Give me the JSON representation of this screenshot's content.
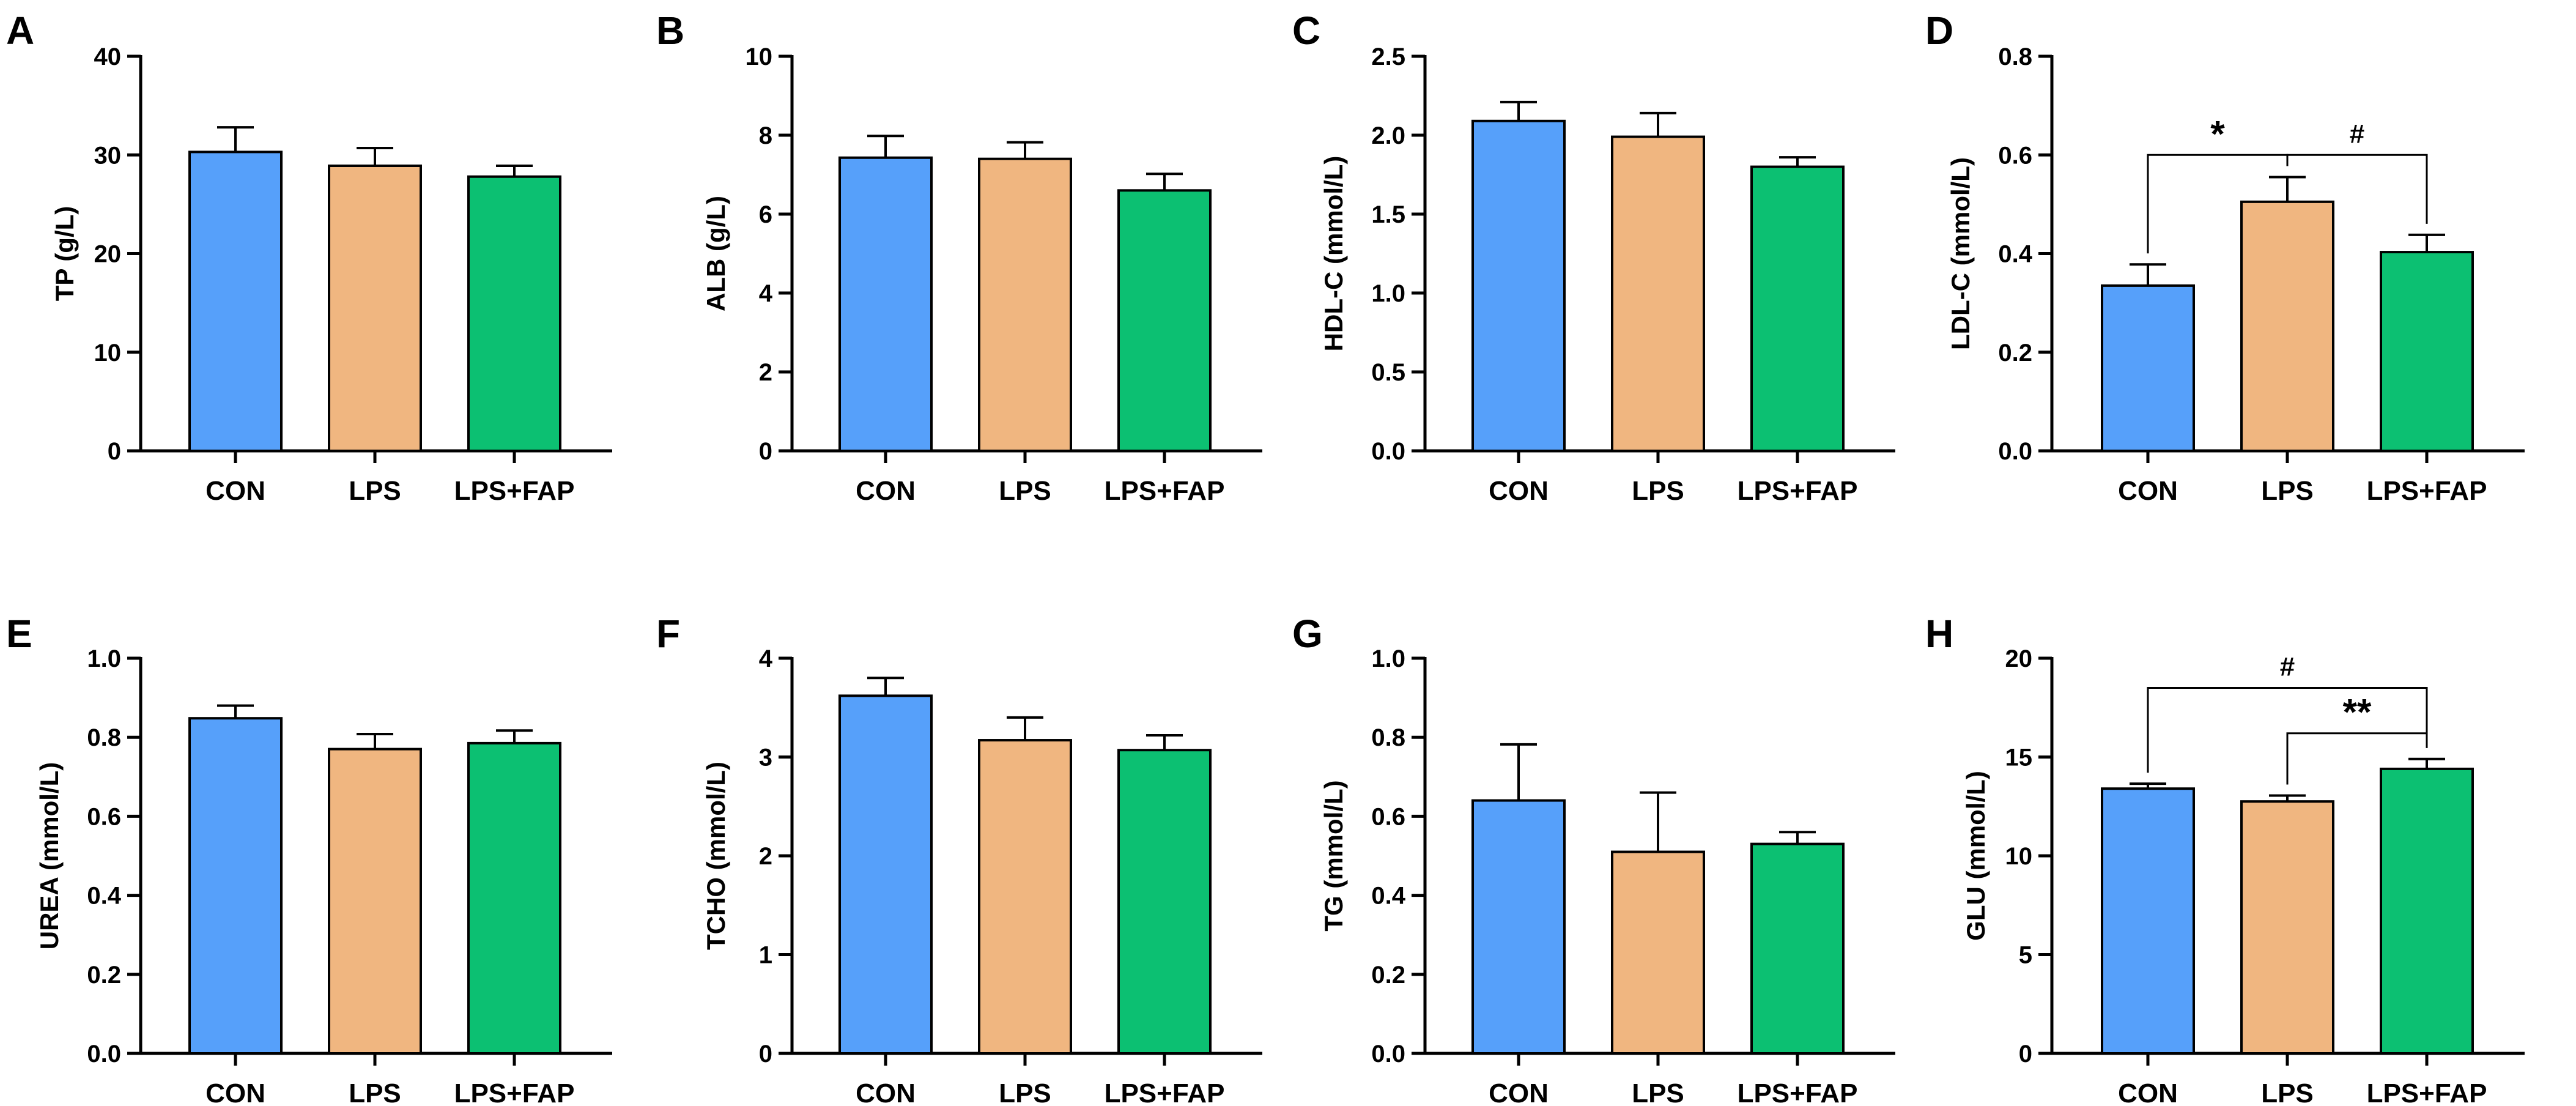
{
  "figure": {
    "group_labels": [
      "CON",
      "LPS",
      "LPS+FAP"
    ],
    "group_colors": [
      "#56A0FA",
      "#F0B680",
      "#0CC072"
    ]
  },
  "chart_data": [
    {
      "panel": "A",
      "type": "bar",
      "ylabel": "TP (g/L)",
      "ylim": [
        0,
        40
      ],
      "yticks": [
        0,
        10,
        20,
        30,
        40
      ],
      "tick_labels": [
        "0",
        "10",
        "20",
        "30",
        "40"
      ],
      "categories": [
        "CON",
        "LPS",
        "LPS+FAP"
      ],
      "values": [
        30.3,
        28.9,
        27.8
      ],
      "errors": [
        2.5,
        1.8,
        1.1
      ],
      "annotations": []
    },
    {
      "panel": "B",
      "type": "bar",
      "ylabel": "ALB (g/L)",
      "ylim": [
        0,
        10
      ],
      "yticks": [
        0,
        2,
        4,
        6,
        8,
        10
      ],
      "tick_labels": [
        "0",
        "2",
        "4",
        "6",
        "8",
        "10"
      ],
      "categories": [
        "CON",
        "LPS",
        "LPS+FAP"
      ],
      "values": [
        7.43,
        7.4,
        6.6
      ],
      "errors": [
        0.55,
        0.42,
        0.42
      ],
      "annotations": []
    },
    {
      "panel": "C",
      "type": "bar",
      "ylabel": "HDL-C (mmol/L)",
      "ylim": [
        0,
        2.5
      ],
      "yticks": [
        0,
        0.5,
        1,
        1.5,
        2,
        2.5
      ],
      "tick_labels": [
        "0.0",
        "0.5",
        "1.0",
        "1.5",
        "2.0",
        "2.5"
      ],
      "categories": [
        "CON",
        "LPS",
        "LPS+FAP"
      ],
      "values": [
        2.09,
        1.99,
        1.8
      ],
      "errors": [
        0.12,
        0.15,
        0.06
      ],
      "annotations": []
    },
    {
      "panel": "D",
      "type": "bar",
      "ylabel": "LDL-C (mmol/L)",
      "ylim": [
        0,
        0.8
      ],
      "yticks": [
        0,
        0.2,
        0.4,
        0.6,
        0.8
      ],
      "tick_labels": [
        "0.0",
        "0.2",
        "0.4",
        "0.6",
        "0.8"
      ],
      "categories": [
        "CON",
        "LPS",
        "LPS+FAP"
      ],
      "values": [
        0.335,
        0.505,
        0.403
      ],
      "errors": [
        0.043,
        0.05,
        0.035
      ],
      "annotations": [
        {
          "from": 0,
          "to": 1,
          "y": 0.6,
          "label": "*"
        },
        {
          "from": 1,
          "to": 2,
          "y": 0.6,
          "label": "#"
        }
      ]
    },
    {
      "panel": "E",
      "type": "bar",
      "ylabel": "UREA (mmol/L)",
      "ylim": [
        0,
        1
      ],
      "yticks": [
        0,
        0.2,
        0.4,
        0.6,
        0.8,
        1
      ],
      "tick_labels": [
        "0.0",
        "0.2",
        "0.4",
        "0.6",
        "0.8",
        "1.0"
      ],
      "categories": [
        "CON",
        "LPS",
        "LPS+FAP"
      ],
      "values": [
        0.848,
        0.77,
        0.785
      ],
      "errors": [
        0.032,
        0.038,
        0.032
      ],
      "annotations": []
    },
    {
      "panel": "F",
      "type": "bar",
      "ylabel": "TCHO (mmol/L)",
      "ylim": [
        0,
        4
      ],
      "yticks": [
        0,
        1,
        2,
        3,
        4
      ],
      "tick_labels": [
        "0",
        "1",
        "2",
        "3",
        "4"
      ],
      "categories": [
        "CON",
        "LPS",
        "LPS+FAP"
      ],
      "values": [
        3.62,
        3.17,
        3.07
      ],
      "errors": [
        0.18,
        0.23,
        0.15
      ],
      "annotations": []
    },
    {
      "panel": "G",
      "type": "bar",
      "ylabel": "TG (mmol/L)",
      "ylim": [
        0,
        1
      ],
      "yticks": [
        0,
        0.2,
        0.4,
        0.6,
        0.8,
        1
      ],
      "tick_labels": [
        "0.0",
        "0.2",
        "0.4",
        "0.6",
        "0.8",
        "1.0"
      ],
      "categories": [
        "CON",
        "LPS",
        "LPS+FAP"
      ],
      "values": [
        0.64,
        0.51,
        0.53
      ],
      "errors": [
        0.142,
        0.15,
        0.03
      ],
      "annotations": []
    },
    {
      "panel": "H",
      "type": "bar",
      "ylabel": "GLU (mmol/L)",
      "ylim": [
        0,
        20
      ],
      "yticks": [
        0,
        5,
        10,
        15,
        20
      ],
      "tick_labels": [
        "0",
        "5",
        "10",
        "15",
        "20"
      ],
      "categories": [
        "CON",
        "LPS",
        "LPS+FAP"
      ],
      "values": [
        13.4,
        12.75,
        14.4
      ],
      "errors": [
        0.25,
        0.3,
        0.5
      ],
      "annotations": [
        {
          "from": 0,
          "to": 2,
          "y": 18.5,
          "label": "#"
        },
        {
          "from": 1,
          "to": 2,
          "y": 16.2,
          "label": "**"
        }
      ]
    }
  ]
}
